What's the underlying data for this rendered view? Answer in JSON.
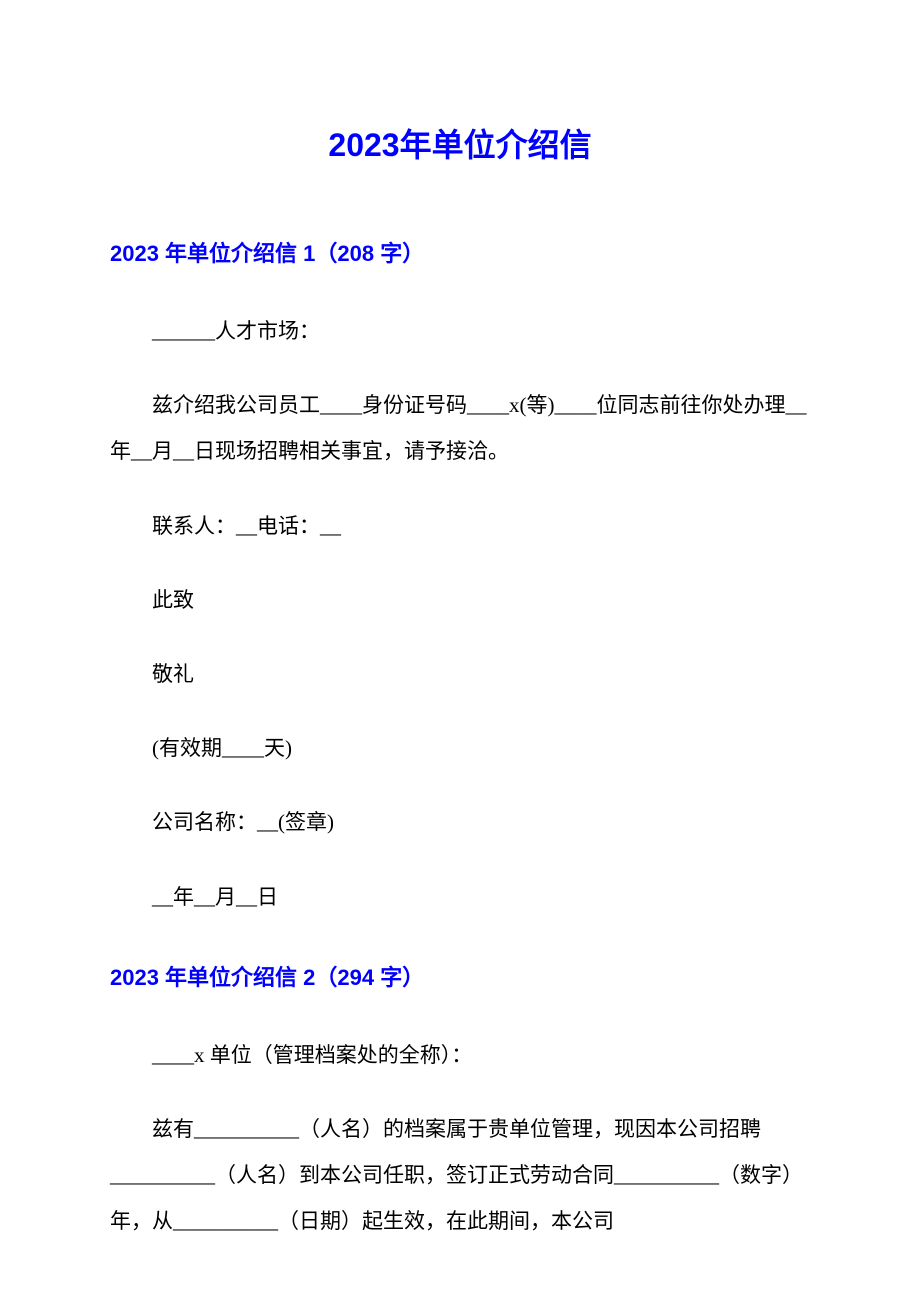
{
  "document": {
    "title": "2023年单位介绍信",
    "title_color": "#0000ff",
    "body_text_color": "#000000",
    "background_color": "#ffffff",
    "title_fontsize": 32,
    "heading_fontsize": 22,
    "body_fontsize": 21,
    "line_height": 2.2,
    "sections": [
      {
        "heading": "2023 年单位介绍信 1（208 字）",
        "paragraphs": [
          "______人才市场：",
          "兹介绍我公司员工____身份证号码____x(等)____位同志前往你处办理__年__月__日现场招聘相关事宜，请予接洽。",
          "联系人：__电话：__",
          "此致",
          "敬礼",
          "(有效期____天)",
          "公司名称：__(签章)",
          "__年__月__日"
        ]
      },
      {
        "heading": "2023 年单位介绍信 2（294 字）",
        "paragraphs": [
          "____x 单位（管理档案处的全称）：",
          "兹有__________（人名）的档案属于贵单位管理，现因本公司招聘__________（人名）到本公司任职，签订正式劳动合同__________（数字）年，从__________（日期）起生效，在此期间，本公司"
        ]
      }
    ]
  }
}
